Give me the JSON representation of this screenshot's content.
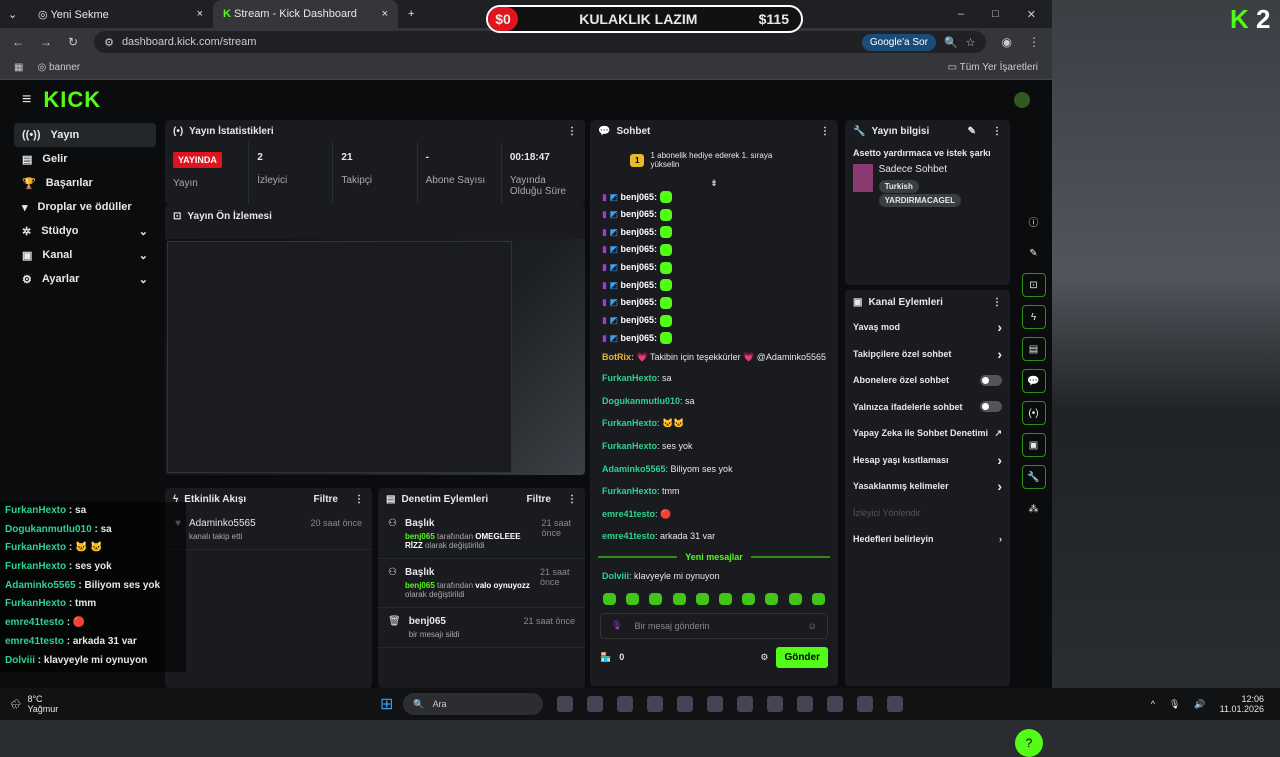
{
  "browser": {
    "tabs": [
      {
        "label": "Yeni Sekme"
      },
      {
        "label": "Stream - Kick Dashboard"
      }
    ],
    "url": "dashboard.kick.com/stream",
    "google_button": "Google'a Sor",
    "bookmark": "banner",
    "all_bookmarks": "Tüm Yer İşaretleri"
  },
  "goal": {
    "start": "$0",
    "title": "KULAKLIK LAZIM",
    "target": "$115"
  },
  "overlay_badge": {
    "letter": "K",
    "count": "2"
  },
  "header": {
    "logo": "KICK"
  },
  "sidebar": {
    "items": [
      {
        "label": "Yayın"
      },
      {
        "label": "Gelir"
      },
      {
        "label": "Başarılar"
      },
      {
        "label": "Droplar ve ödüller"
      },
      {
        "label": "Stüdyo"
      },
      {
        "label": "Kanal"
      },
      {
        "label": "Ayarlar"
      }
    ]
  },
  "stats": {
    "title": "Yayın İstatistikleri",
    "live_badge": "YAYINDA",
    "items": [
      {
        "value": "",
        "label": "Yayın"
      },
      {
        "value": "2",
        "label": "İzleyici"
      },
      {
        "value": "21",
        "label": "Takipçi"
      },
      {
        "value": "-",
        "label": "Abone Sayısı"
      },
      {
        "value": "00:18:47",
        "label": "Yayında Olduğu Süre"
      }
    ]
  },
  "preview": {
    "title": "Yayın Ön İzlemesi"
  },
  "activity": {
    "title": "Etkinlik Akışı",
    "filter": "Filtre",
    "events": [
      {
        "user": "Adaminko5565",
        "desc": "kanalı takip etti",
        "time": "20 saat önce"
      }
    ]
  },
  "moderation": {
    "title": "Denetim Eylemleri",
    "filter": "Filtre",
    "events": [
      {
        "title": "Başlık",
        "user": "benj065",
        "mid": " tarafından ",
        "value": "OMEGLEEE RİZZ",
        "end": " olarak değiştirildi",
        "time": "21 saat önce"
      },
      {
        "title": "Başlık",
        "user": "benj065",
        "mid": " tarafından ",
        "value": "valo oynuyozz",
        "end": " olarak değiştirildi",
        "time": "21 saat önce"
      },
      {
        "title": "benj065",
        "desc": "bir mesajı sildi",
        "time": "21 saat önce"
      }
    ]
  },
  "chat": {
    "title": "Sohbet",
    "gift_banner": "1 abonelik hediye ederek 1. sıraya yükselin",
    "gift_rank": "1",
    "repeat_user": "benj065:",
    "bot": {
      "user": "BotRix:",
      "text": " 💗 Takibin için teşekkürler 💗 @Adaminko5565"
    },
    "messages": [
      {
        "user": "FurkanHexto",
        "text": "sa"
      },
      {
        "user": "Dogukanmutlu010",
        "text": "sa"
      },
      {
        "user": "FurkanHexto",
        "text": "🐱🐱"
      },
      {
        "user": "FurkanHexto",
        "text": "ses yok"
      },
      {
        "user": "Adaminko5565",
        "text": "Biliyom ses yok"
      },
      {
        "user": "FurkanHexto",
        "text": "tmm"
      },
      {
        "user": "emre41testo",
        "text": "🔴"
      },
      {
        "user": "emre41testo",
        "text": "arkada 31 var"
      }
    ],
    "new_messages": "Yeni mesajlar",
    "new": {
      "user": "Dolviii",
      "text": "klavyeyle mi oynuyon"
    },
    "placeholder": "Bir mesaj gönderin",
    "points": "0",
    "send": "Gönder"
  },
  "stream_info": {
    "title": "Yayın bilgisi",
    "stream_title": "Asetto yardırmaca ve istek şarkı",
    "category": "Sadece Sohbet",
    "tags": [
      "Turkish",
      "YARDIRMACAGEL"
    ]
  },
  "channel_actions": {
    "title": "Kanal Eylemleri",
    "items": [
      {
        "label": "Yavaş mod",
        "control": "chevron"
      },
      {
        "label": "Takipçilere özel sohbet",
        "control": "chevron"
      },
      {
        "label": "Abonelere özel sohbet",
        "control": "toggle",
        "on": false
      },
      {
        "label": "Yalnızca ifadelerle sohbet",
        "control": "toggle",
        "on": false
      },
      {
        "label": "Yapay Zeka ile Sohbet Denetimi",
        "control": "external"
      },
      {
        "label": "Hesap yaşı kısıtlaması",
        "control": "chevron"
      },
      {
        "label": "Yasaklanmış kelimeler",
        "control": "chevron"
      }
    ],
    "section": "İzleyici Yönlendir",
    "goal_item": "Hedefleri belirleyin"
  },
  "stream_overlay_chat": [
    {
      "user": "FurkanHexto",
      "text": "sa"
    },
    {
      "user": "Dogukanmutlu010",
      "text": "sa"
    },
    {
      "user": "FurkanHexto",
      "text": "🐱 🐱"
    },
    {
      "user": "FurkanHexto",
      "text": "ses yok"
    },
    {
      "user": "Adaminko5565",
      "text": "Biliyom ses yok"
    },
    {
      "user": "FurkanHexto",
      "text": "tmm"
    },
    {
      "user": "emre41testo",
      "text": "🔴"
    },
    {
      "user": "emre41testo",
      "text": "arkada 31 var"
    },
    {
      "user": "Dolviii",
      "text": "klavyeyle mi oynuyon"
    }
  ],
  "taskbar": {
    "weather_temp": "8°C",
    "weather_desc": "Yağmur",
    "search": "Ara",
    "time": "12:06",
    "date": "11.01.2026"
  },
  "colors": {
    "accent": "#53fc18",
    "live": "#e0141e",
    "username": "#2fd190"
  }
}
